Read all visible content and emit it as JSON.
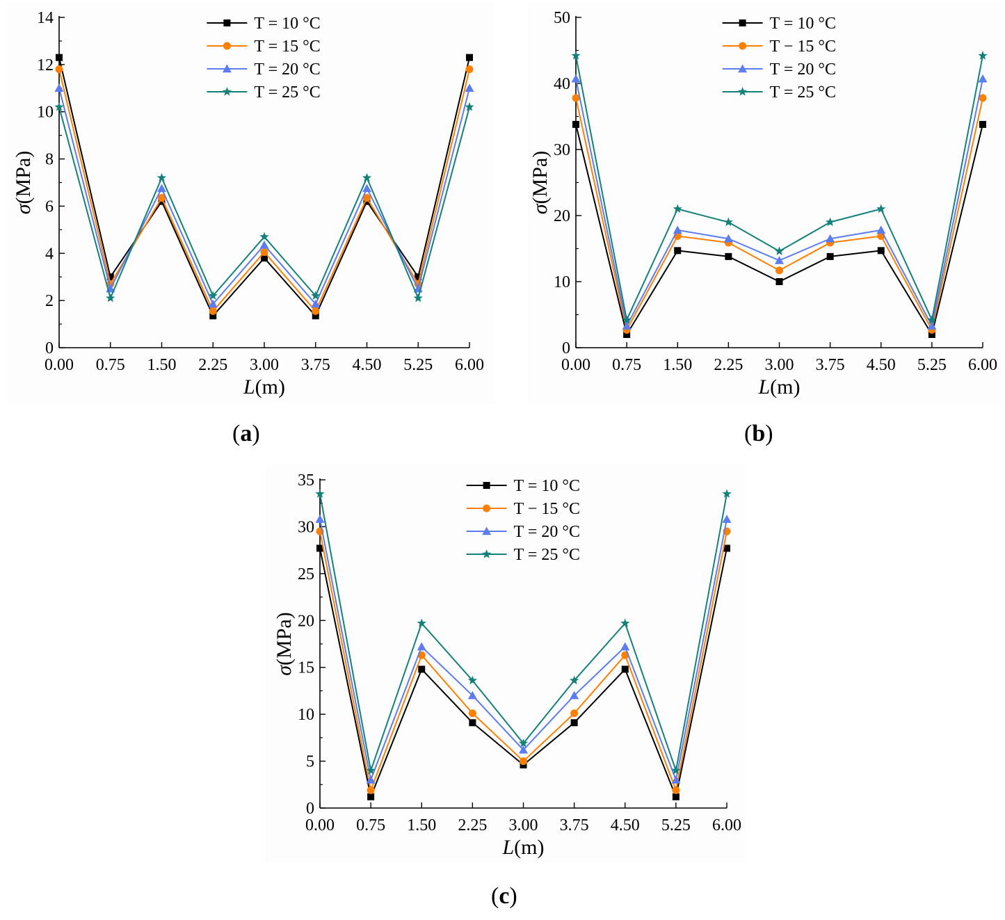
{
  "captions": [
    {
      "open": "(",
      "letter": "a",
      "close": ")"
    },
    {
      "open": "(",
      "letter": "b",
      "close": ")"
    },
    {
      "open": "(",
      "letter": "c",
      "close": ")"
    }
  ],
  "colors": {
    "T10": "#000000",
    "T15": "#ff8000",
    "T20": "#5c7cf0",
    "T25": "#13807a"
  },
  "chart_data": [
    {
      "id": "a",
      "type": "line",
      "xlabel_italic": "L",
      "xlabel_rest": "(m)",
      "ylabel_italic": "σ",
      "ylabel_rest": "(MPa)",
      "x": [
        0.0,
        0.75,
        1.5,
        2.25,
        3.0,
        3.75,
        4.5,
        5.25,
        6.0
      ],
      "xtick_labels": [
        "0.00",
        "0.75",
        "1.50",
        "2.25",
        "3.00",
        "3.75",
        "4.50",
        "5.25",
        "6.00"
      ],
      "ylim": [
        0,
        14
      ],
      "yticks": [
        0,
        2,
        4,
        6,
        8,
        10,
        12,
        14
      ],
      "legend_position": "top-center",
      "series": [
        {
          "name": "T = 10 °C",
          "marker": "square",
          "color_key": "T10",
          "values": [
            12.3,
            3.0,
            6.2,
            1.35,
            3.8,
            1.35,
            6.2,
            3.0,
            12.3
          ]
        },
        {
          "name": "T = 15 °C",
          "marker": "circle",
          "color_key": "T15",
          "values": [
            11.8,
            2.7,
            6.35,
            1.55,
            4.05,
            1.55,
            6.35,
            2.7,
            11.8
          ]
        },
        {
          "name": "T = 20 °C",
          "marker": "triangle",
          "color_key": "T20",
          "values": [
            11.0,
            2.5,
            6.75,
            1.85,
            4.35,
            1.85,
            6.75,
            2.5,
            11.0
          ]
        },
        {
          "name": "T = 25 °C",
          "marker": "star",
          "color_key": "T25",
          "values": [
            10.2,
            2.1,
            7.2,
            2.2,
            4.7,
            2.2,
            7.2,
            2.1,
            10.2
          ]
        }
      ]
    },
    {
      "id": "b",
      "type": "line",
      "xlabel_italic": "L",
      "xlabel_rest": "(m)",
      "ylabel_italic": "σ",
      "ylabel_rest": "(MPa)",
      "x": [
        0.0,
        0.75,
        1.5,
        2.25,
        3.0,
        3.75,
        4.5,
        5.25,
        6.0
      ],
      "xtick_labels": [
        "0.00",
        "0.75",
        "1.50",
        "2.25",
        "3.00",
        "3.75",
        "4.50",
        "5.25",
        "6.00"
      ],
      "ylim": [
        0,
        50
      ],
      "yticks": [
        0,
        10,
        20,
        30,
        40,
        50
      ],
      "legend_position": "top-center",
      "series": [
        {
          "name": "T = 10 °C",
          "marker": "square",
          "color_key": "T10",
          "values": [
            33.8,
            2.0,
            14.7,
            13.8,
            10.0,
            13.8,
            14.7,
            2.0,
            33.8
          ]
        },
        {
          "name": "T − 15 °C",
          "marker": "circle",
          "color_key": "T15",
          "values": [
            37.8,
            2.7,
            16.9,
            15.9,
            11.7,
            15.9,
            16.9,
            2.7,
            37.8
          ]
        },
        {
          "name": "T = 20 °C",
          "marker": "triangle",
          "color_key": "T20",
          "values": [
            40.7,
            3.3,
            17.8,
            16.5,
            13.2,
            16.5,
            17.8,
            3.3,
            40.7
          ]
        },
        {
          "name": "T = 25 °C",
          "marker": "star",
          "color_key": "T25",
          "values": [
            44.2,
            4.2,
            21.0,
            19.0,
            14.6,
            19.0,
            21.0,
            4.2,
            44.2
          ]
        }
      ]
    },
    {
      "id": "c",
      "type": "line",
      "xlabel_italic": "L",
      "xlabel_rest": "(m)",
      "ylabel_italic": "σ",
      "ylabel_rest": "(MPa)",
      "x": [
        0.0,
        0.75,
        1.5,
        2.25,
        3.0,
        3.75,
        4.5,
        5.25,
        6.0
      ],
      "xtick_labels": [
        "0.00",
        "0.75",
        "1.50",
        "2.25",
        "3.00",
        "3.75",
        "4.50",
        "5.25",
        "6.00"
      ],
      "ylim": [
        0,
        35
      ],
      "yticks": [
        0,
        5,
        10,
        15,
        20,
        25,
        30,
        35
      ],
      "legend_position": "top-center",
      "series": [
        {
          "name": "T = 10 °C",
          "marker": "square",
          "color_key": "T10",
          "values": [
            27.7,
            1.2,
            14.8,
            9.1,
            4.6,
            9.1,
            14.8,
            1.2,
            27.7
          ]
        },
        {
          "name": "T − 15 °C",
          "marker": "circle",
          "color_key": "T15",
          "values": [
            29.5,
            1.9,
            16.3,
            10.1,
            5.0,
            10.1,
            16.3,
            1.9,
            29.5
          ]
        },
        {
          "name": "T = 20 °C",
          "marker": "triangle",
          "color_key": "T20",
          "values": [
            30.8,
            3.0,
            17.2,
            12.0,
            6.2,
            12.0,
            17.2,
            3.0,
            30.8
          ]
        },
        {
          "name": "T = 25 °C",
          "marker": "star",
          "color_key": "T25",
          "values": [
            33.5,
            4.0,
            19.7,
            13.6,
            6.9,
            13.6,
            19.7,
            4.0,
            33.5
          ]
        }
      ]
    }
  ]
}
